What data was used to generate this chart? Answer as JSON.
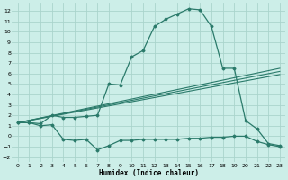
{
  "xlabel": "Humidex (Indice chaleur)",
  "bg_color": "#cceee8",
  "grid_color": "#aad4cc",
  "line_color": "#2a7a6a",
  "xlim": [
    -0.5,
    23.5
  ],
  "ylim": [
    -2.5,
    12.8
  ],
  "xticks": [
    0,
    1,
    2,
    3,
    4,
    5,
    6,
    7,
    8,
    9,
    10,
    11,
    12,
    13,
    14,
    15,
    16,
    17,
    18,
    19,
    20,
    21,
    22,
    23
  ],
  "yticks": [
    -2,
    -1,
    0,
    1,
    2,
    3,
    4,
    5,
    6,
    7,
    8,
    9,
    10,
    11,
    12
  ],
  "curve1_x": [
    0,
    1,
    2,
    3,
    4,
    5,
    6,
    7,
    8,
    9,
    10,
    11,
    12,
    13,
    14,
    15,
    16,
    17,
    18,
    19,
    20,
    21,
    22,
    23
  ],
  "curve1_y": [
    1.3,
    1.3,
    1.2,
    2.0,
    1.8,
    1.8,
    1.9,
    2.0,
    5.0,
    4.9,
    7.6,
    8.2,
    10.5,
    11.2,
    11.7,
    12.2,
    12.1,
    10.5,
    6.5,
    6.5,
    1.5,
    0.7,
    -0.7,
    -0.9
  ],
  "line1_x": [
    0,
    23
  ],
  "line1_y": [
    1.3,
    6.5
  ],
  "line2_x": [
    0,
    23
  ],
  "line2_y": [
    1.3,
    6.2
  ],
  "line3_x": [
    0,
    23
  ],
  "line3_y": [
    1.3,
    5.9
  ],
  "curve5_x": [
    0,
    1,
    2,
    3,
    4,
    5,
    6,
    7,
    8,
    9,
    10,
    11,
    12,
    13,
    14,
    15,
    16,
    17,
    18,
    19,
    20,
    21,
    22,
    23
  ],
  "curve5_y": [
    1.3,
    1.3,
    1.0,
    1.1,
    -0.3,
    -0.4,
    -0.3,
    -1.3,
    -0.9,
    -0.4,
    -0.4,
    -0.3,
    -0.3,
    -0.3,
    -0.3,
    -0.2,
    -0.2,
    -0.1,
    -0.1,
    -0.0,
    0.0,
    -0.5,
    -0.8,
    -1.0
  ]
}
